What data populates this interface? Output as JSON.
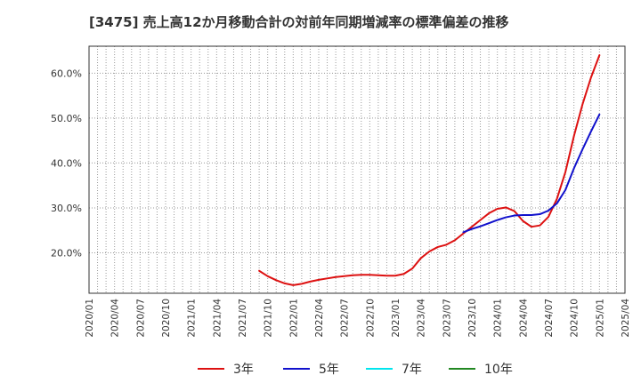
{
  "chart_data": {
    "type": "line",
    "title": "[3475]  売上高12か月移動合計の対前年同期増減率の標準偏差の推移",
    "xlabel": "",
    "ylabel": "",
    "ylim": [
      11.0,
      66.0
    ],
    "y_ticks": [
      20.0,
      30.0,
      40.0,
      50.0,
      60.0
    ],
    "y_tick_labels": [
      "20.0%",
      "30.0%",
      "40.0%",
      "50.0%",
      "60.0%"
    ],
    "x_range": [
      "2020-01",
      "2025-04"
    ],
    "x_tick_labels": [
      "2020/01",
      "2020/04",
      "2020/07",
      "2020/10",
      "2021/01",
      "2021/04",
      "2021/07",
      "2021/10",
      "2022/01",
      "2022/04",
      "2022/07",
      "2022/10",
      "2023/01",
      "2023/04",
      "2023/07",
      "2023/10",
      "2024/01",
      "2024/04",
      "2024/07",
      "2024/10",
      "2025/01",
      "2025/04"
    ],
    "grid": true,
    "legend_position": "bottom",
    "series": [
      {
        "name": "3年",
        "color": "#dd1111",
        "start": "2021-09",
        "values": [
          16.0,
          14.8,
          13.9,
          13.2,
          12.8,
          13.1,
          13.6,
          14.0,
          14.3,
          14.6,
          14.8,
          15.0,
          15.1,
          15.1,
          15.0,
          14.9,
          14.9,
          15.3,
          16.5,
          18.8,
          20.3,
          21.3,
          21.8,
          22.8,
          24.3,
          25.8,
          27.3,
          28.8,
          29.8,
          30.1,
          29.3,
          27.1,
          25.8,
          26.1,
          28.0,
          32.0,
          38.0,
          46.0,
          53.0,
          59.0,
          64.0
        ]
      },
      {
        "name": "5年",
        "color": "#1111cc",
        "start": "2023-09",
        "values": [
          24.6,
          25.3,
          25.9,
          26.6,
          27.3,
          27.9,
          28.3,
          28.4,
          28.4,
          28.6,
          29.4,
          31.0,
          34.0,
          38.8,
          43.0,
          47.0,
          50.8
        ]
      },
      {
        "name": "7年",
        "color": "#00e5ee",
        "start": "2025-01",
        "values": []
      },
      {
        "name": "10年",
        "color": "#228822",
        "start": "2025-01",
        "values": []
      }
    ]
  }
}
